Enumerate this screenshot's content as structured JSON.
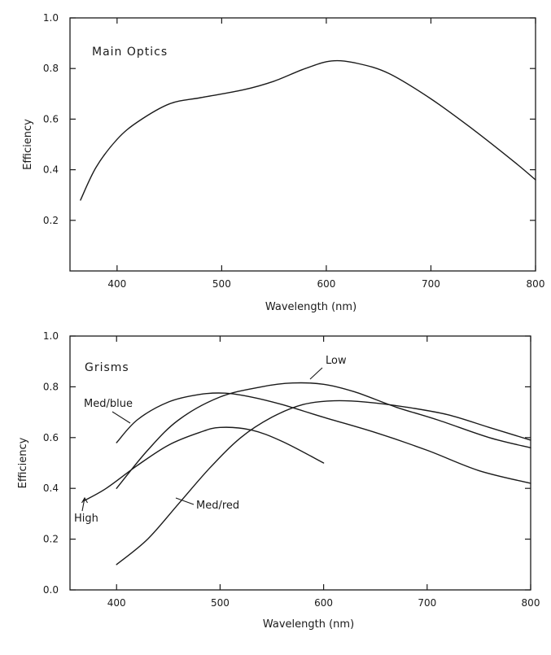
{
  "chart_data": [
    {
      "type": "line",
      "title": "Main Optics",
      "xlabel": "Wavelength (nm)",
      "ylabel": "Efficiency",
      "xlim": [
        355,
        800
      ],
      "ylim": [
        0,
        1.0
      ],
      "xticks": [
        400,
        500,
        600,
        700,
        800
      ],
      "yticks": [
        0.2,
        0.4,
        0.6,
        0.8,
        1.0
      ],
      "ytick_labels": [
        "0.2",
        "0.4",
        "0.6",
        "0.8",
        "1.0"
      ],
      "grid": false,
      "series": [
        {
          "x": [
            365,
            380,
            400,
            420,
            450,
            480,
            520,
            550,
            580,
            605,
            630,
            660,
            700,
            740,
            780,
            800
          ],
          "y": [
            0.28,
            0.41,
            0.52,
            0.59,
            0.66,
            0.685,
            0.715,
            0.75,
            0.8,
            0.83,
            0.82,
            0.78,
            0.68,
            0.56,
            0.43,
            0.36
          ]
        }
      ]
    },
    {
      "type": "line",
      "title": "Grisms",
      "xlabel": "Wavelength (nm)",
      "ylabel": "Efficiency",
      "xlim": [
        355,
        800
      ],
      "ylim": [
        0,
        1.0
      ],
      "xticks": [
        400,
        500,
        600,
        700,
        800
      ],
      "yticks": [
        0.0,
        0.2,
        0.4,
        0.6,
        0.8,
        1.0
      ],
      "ytick_labels": [
        "0.0",
        "0.2",
        "0.4",
        "0.6",
        "0.8",
        "1.0"
      ],
      "grid": false,
      "series": [
        {
          "name": "Low",
          "x": [
            400,
            430,
            460,
            500,
            540,
            570,
            600,
            630,
            670,
            710,
            760,
            800
          ],
          "y": [
            0.4,
            0.55,
            0.67,
            0.76,
            0.8,
            0.815,
            0.81,
            0.78,
            0.72,
            0.67,
            0.6,
            0.56
          ]
        },
        {
          "name": "Med/blue",
          "x": [
            400,
            420,
            450,
            480,
            505,
            530,
            560,
            600,
            650,
            700,
            750,
            800
          ],
          "y": [
            0.58,
            0.67,
            0.74,
            0.77,
            0.775,
            0.76,
            0.73,
            0.68,
            0.62,
            0.55,
            0.47,
            0.42
          ]
        },
        {
          "name": "High",
          "x": [
            368,
            390,
            420,
            450,
            480,
            500,
            530,
            560,
            600
          ],
          "y": [
            0.35,
            0.4,
            0.49,
            0.57,
            0.62,
            0.64,
            0.63,
            0.585,
            0.5
          ]
        },
        {
          "name": "Med/red",
          "x": [
            400,
            430,
            460,
            490,
            520,
            550,
            580,
            610,
            640,
            680,
            720,
            760,
            800
          ],
          "y": [
            0.1,
            0.2,
            0.34,
            0.48,
            0.6,
            0.68,
            0.73,
            0.745,
            0.74,
            0.72,
            0.69,
            0.64,
            0.59
          ]
        }
      ],
      "annotations": [
        {
          "text": "Low",
          "series": "Low",
          "at_x": 560
        },
        {
          "text": "Med/blue",
          "series": "Med/blue",
          "at_x": 412
        },
        {
          "text": "High",
          "series": "High",
          "at_x": 370
        },
        {
          "text": "Med/red",
          "series": "Med/red",
          "at_x": 455
        }
      ]
    }
  ]
}
